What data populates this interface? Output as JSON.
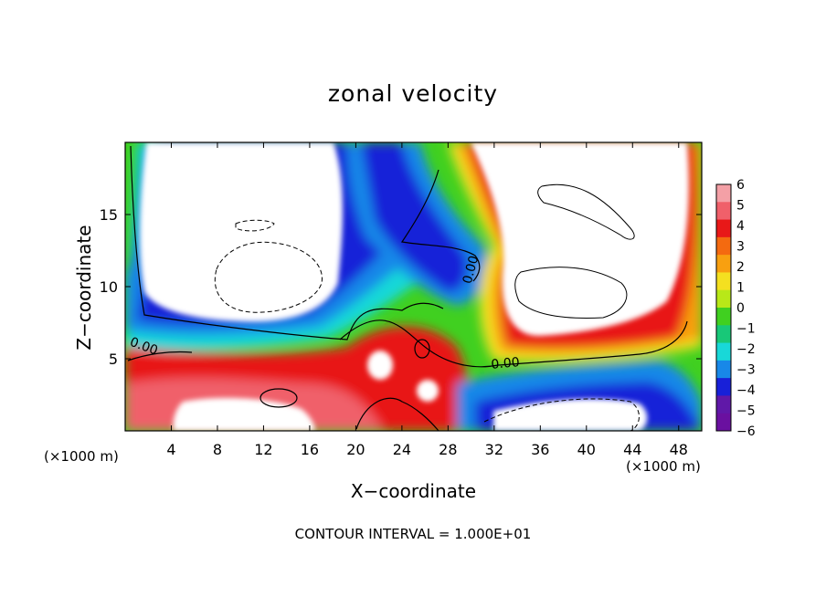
{
  "chart_data": {
    "type": "heatmap",
    "title": "zonal velocity",
    "xlabel": "X−coordinate",
    "ylabel": "Z−coordinate",
    "x_scale_note": "(×1000 m)",
    "y_scale_note": "(×1000 m)",
    "footer": "CONTOUR INTERVAL = 1.000E+01",
    "xlim": [
      0,
      50
    ],
    "ylim": [
      0,
      20
    ],
    "x_ticks": [
      "4",
      "8",
      "12",
      "16",
      "20",
      "24",
      "28",
      "32",
      "36",
      "40",
      "44",
      "48"
    ],
    "y_ticks": [
      "5",
      "10",
      "15"
    ],
    "colorbar": {
      "range": [
        -6,
        6
      ],
      "tick_labels": [
        "6",
        "5",
        "4",
        "3",
        "2",
        "1",
        "0",
        "−1",
        "−2",
        "−3",
        "−4",
        "−5",
        "−6"
      ],
      "colors": [
        "#f4a0a6",
        "#f0606a",
        "#e81818",
        "#f46a10",
        "#f8a010",
        "#f4e020",
        "#b8e818",
        "#40d020",
        "#18c878",
        "#18d8d8",
        "#1888e8",
        "#1820d8",
        "#6018a8",
        "#6a10a0"
      ]
    },
    "contour_labels": [
      {
        "text": "0.00",
        "x": 1.5,
        "z": 5.6
      },
      {
        "text": "0.00",
        "x": 30.3,
        "z": 11.1
      },
      {
        "text": "0.00",
        "x": 33.0,
        "z": 4.4
      }
    ],
    "saturated_regions": [
      {
        "sign": "negative",
        "x": 13.5,
        "z": 13.5,
        "rx": 7.5,
        "rz": 6.5
      },
      {
        "sign": "positive",
        "x": 38.5,
        "z": 13.5,
        "rx": 8.5,
        "rz": 6.5
      },
      {
        "sign": "positive",
        "x": 13.0,
        "z": 1.4,
        "rx": 6.5,
        "rz": 1.4
      },
      {
        "sign": "positive",
        "x": 25.5,
        "z": 4.8,
        "rx": 1.8,
        "rz": 1.5
      },
      {
        "sign": "negative",
        "x": 37.0,
        "z": 1.5,
        "rx": 5.0,
        "rz": 1.3
      }
    ]
  }
}
